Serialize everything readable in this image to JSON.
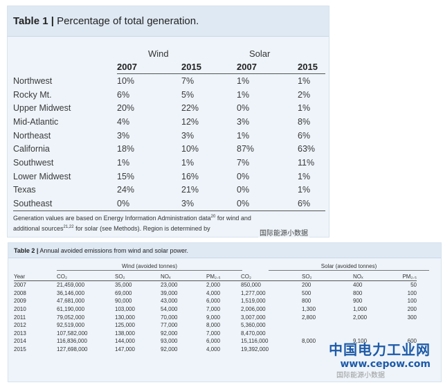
{
  "table1": {
    "label": "Table 1 |",
    "title": " Percentage of total generation.",
    "groups": [
      "Wind",
      "Solar"
    ],
    "years": [
      "2007",
      "2015",
      "2007",
      "2015"
    ],
    "rows": [
      [
        "Northwest",
        "10%",
        "7%",
        "1%",
        "1%"
      ],
      [
        "Rocky Mt.",
        "6%",
        "5%",
        "1%",
        "2%"
      ],
      [
        "Upper Midwest",
        "20%",
        "22%",
        "0%",
        "1%"
      ],
      [
        "Mid-Atlantic",
        "4%",
        "12%",
        "3%",
        "8%"
      ],
      [
        "Northeast",
        "3%",
        "3%",
        "1%",
        "6%"
      ],
      [
        "California",
        "18%",
        "10%",
        "87%",
        "63%"
      ],
      [
        "Southwest",
        "1%",
        "1%",
        "7%",
        "11%"
      ],
      [
        "Lower Midwest",
        "15%",
        "16%",
        "0%",
        "1%"
      ],
      [
        "Texas",
        "24%",
        "21%",
        "0%",
        "1%"
      ],
      [
        "Southeast",
        "0%",
        "3%",
        "0%",
        "6%"
      ]
    ],
    "footnote_1": "Generation values are based on Energy Information Administration data",
    "footnote_sup1": "20",
    "footnote_2": " for wind and",
    "footnote_3": "additional sources",
    "footnote_sup2": "21,22",
    "footnote_4": " for solar (see Methods). Region is determined by",
    "watermark": "国际能源小数据"
  },
  "table2": {
    "label": "Table 2 |",
    "title": " Annual avoided emissions from wind and solar power.",
    "groups": [
      "Wind (avoided tonnes)",
      "Solar (avoided tonnes)"
    ],
    "headers": [
      "Year",
      "CO₂",
      "SO₂",
      "NOₓ",
      "PM₂.₅",
      "CO₂",
      "SO₂",
      "NOₓ",
      "PM₂.₅"
    ],
    "rows": [
      [
        "2007",
        "21,459,000",
        "35,000",
        "23,000",
        "2,000",
        "850,000",
        "200",
        "400",
        "50"
      ],
      [
        "2008",
        "36,146,000",
        "69,000",
        "39,000",
        "4,000",
        "1,277,000",
        "500",
        "800",
        "100"
      ],
      [
        "2009",
        "47,681,000",
        "90,000",
        "43,000",
        "6,000",
        "1,519,000",
        "800",
        "900",
        "100"
      ],
      [
        "2010",
        "61,190,000",
        "103,000",
        "54,000",
        "7,000",
        "2,006,000",
        "1,300",
        "1,000",
        "200"
      ],
      [
        "2011",
        "79,052,000",
        "130,000",
        "70,000",
        "9,000",
        "3,007,000",
        "2,800",
        "2,000",
        "300"
      ],
      [
        "2012",
        "92,519,000",
        "125,000",
        "77,000",
        "8,000",
        "5,360,000",
        "",
        "",
        ""
      ],
      [
        "2013",
        "107,582,000",
        "138,000",
        "92,000",
        "7,000",
        "8,470,000",
        "",
        "",
        ""
      ],
      [
        "2014",
        "116,836,000",
        "144,000",
        "93,000",
        "6,000",
        "15,116,000",
        "8,000",
        "9,100",
        "600"
      ],
      [
        "2015",
        "127,698,000",
        "147,000",
        "92,000",
        "4,000",
        "19,392,000",
        "",
        "",
        ""
      ]
    ],
    "watermark_cn": "中国电力工业网",
    "watermark_url": "www.cepow.com",
    "watermark_small": "国际能源小数据"
  }
}
